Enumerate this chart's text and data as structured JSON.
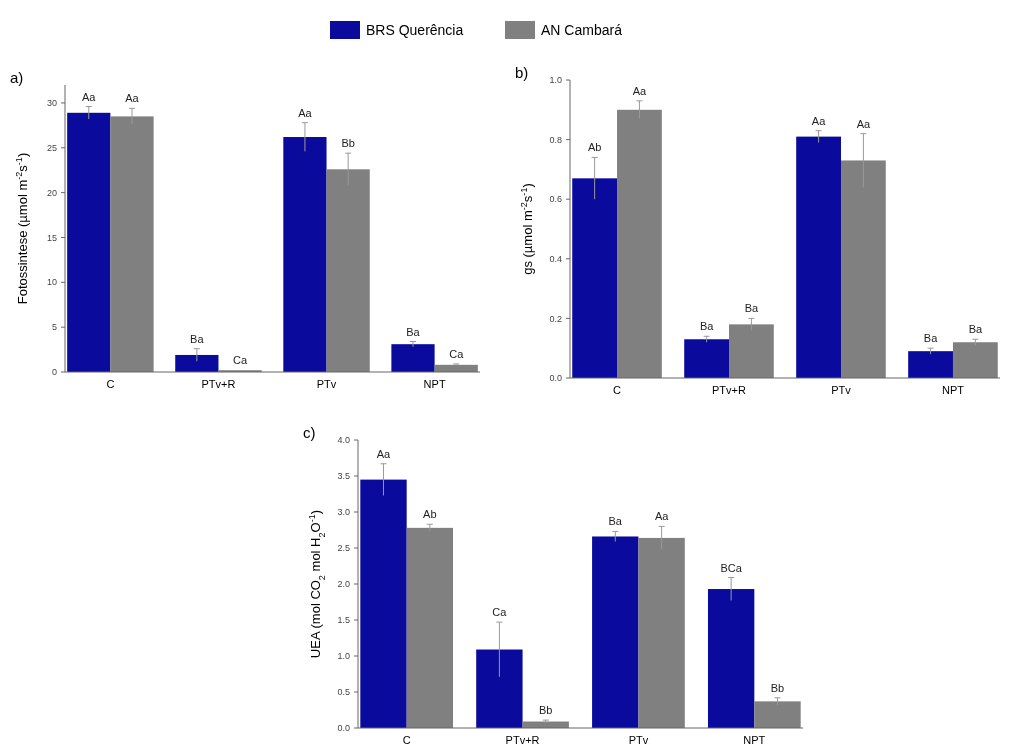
{
  "chart_data": [
    {
      "type": "bar",
      "title": "a)",
      "ylabel": "Fotossintese (µmol m$^{-2}$s$^{-1}$)",
      "categories": [
        "C",
        "PTv+R",
        "PTv",
        "NPT"
      ],
      "ylim": [
        0,
        32
      ],
      "yticks": [
        0,
        5,
        10,
        15,
        20,
        25,
        30
      ],
      "legend": "top",
      "grid": false,
      "series": [
        {
          "name": "BRS Querência",
          "color": "#0a0a9c",
          "values": [
            28.9,
            1.9,
            26.2,
            3.1
          ],
          "errors": [
            0.7,
            0.7,
            1.6,
            0.3
          ],
          "value_labels": [
            "Aa",
            "Ba",
            "Aa",
            "Ba"
          ]
        },
        {
          "name": "AN Cambará",
          "color": "#808080",
          "values": [
            28.5,
            0.2,
            22.6,
            0.8
          ],
          "errors": [
            0.9,
            null,
            1.8,
            0.1
          ],
          "value_labels": [
            "Aa",
            "Ca",
            "Bb",
            "Ca"
          ]
        }
      ]
    },
    {
      "type": "bar",
      "title": "b)",
      "ylabel": "gs (µmol m$^{-2}$s$^{-1}$)",
      "categories": [
        "C",
        "PTv+R",
        "PTv",
        "NPT"
      ],
      "ylim": [
        0,
        1
      ],
      "yticks": [
        {
          "value": 0,
          "label": "0.0"
        },
        0.2,
        0.4,
        0.6,
        0.8,
        {
          "value": 1,
          "label": "1.0"
        }
      ],
      "grid": false,
      "series": [
        {
          "color": "#0a0a9c",
          "values": [
            0.67,
            0.13,
            0.81,
            0.09
          ],
          "errors": [
            0.07,
            0.01,
            0.02,
            0.01
          ],
          "value_labels": [
            "Ab",
            "Ba",
            "Aa",
            "Ba"
          ]
        },
        {
          "color": "#808080",
          "values": [
            0.9,
            0.18,
            0.73,
            0.12
          ],
          "errors": [
            0.03,
            0.02,
            0.09,
            0.01
          ],
          "value_labels": [
            "Aa",
            "Ba",
            "Aa",
            "Ba"
          ]
        }
      ]
    },
    {
      "type": "bar",
      "title": "c)",
      "ylabel": "UEA (mol CO$_{2}$ mol H$_{2}$O$^{-1}$)",
      "categories": [
        "C",
        "PTv+R",
        "PTv",
        "NPT"
      ],
      "ylim": [
        0,
        4
      ],
      "yticks": [
        {
          "value": 0,
          "label": "0.0"
        },
        0.5,
        {
          "value": 1,
          "label": "1.0"
        },
        1.5,
        {
          "value": 2,
          "label": "2.0"
        },
        2.5,
        {
          "value": 3,
          "label": "3.0"
        },
        3.5,
        {
          "value": 4,
          "label": "4.0"
        }
      ],
      "grid": false,
      "series": [
        {
          "color": "#0a0a9c",
          "values": [
            3.45,
            1.09,
            2.66,
            1.93
          ],
          "errors": [
            0.22,
            0.38,
            0.07,
            0.16
          ],
          "value_labels": [
            "Aa",
            "Ca",
            "Ba",
            "BCa"
          ]
        },
        {
          "color": "#808080",
          "values": [
            2.78,
            0.09,
            2.64,
            0.37
          ],
          "errors": [
            0.05,
            0.02,
            0.16,
            0.05
          ],
          "value_labels": [
            "Ab",
            "Bb",
            "Aa",
            "Bb"
          ]
        }
      ]
    }
  ]
}
